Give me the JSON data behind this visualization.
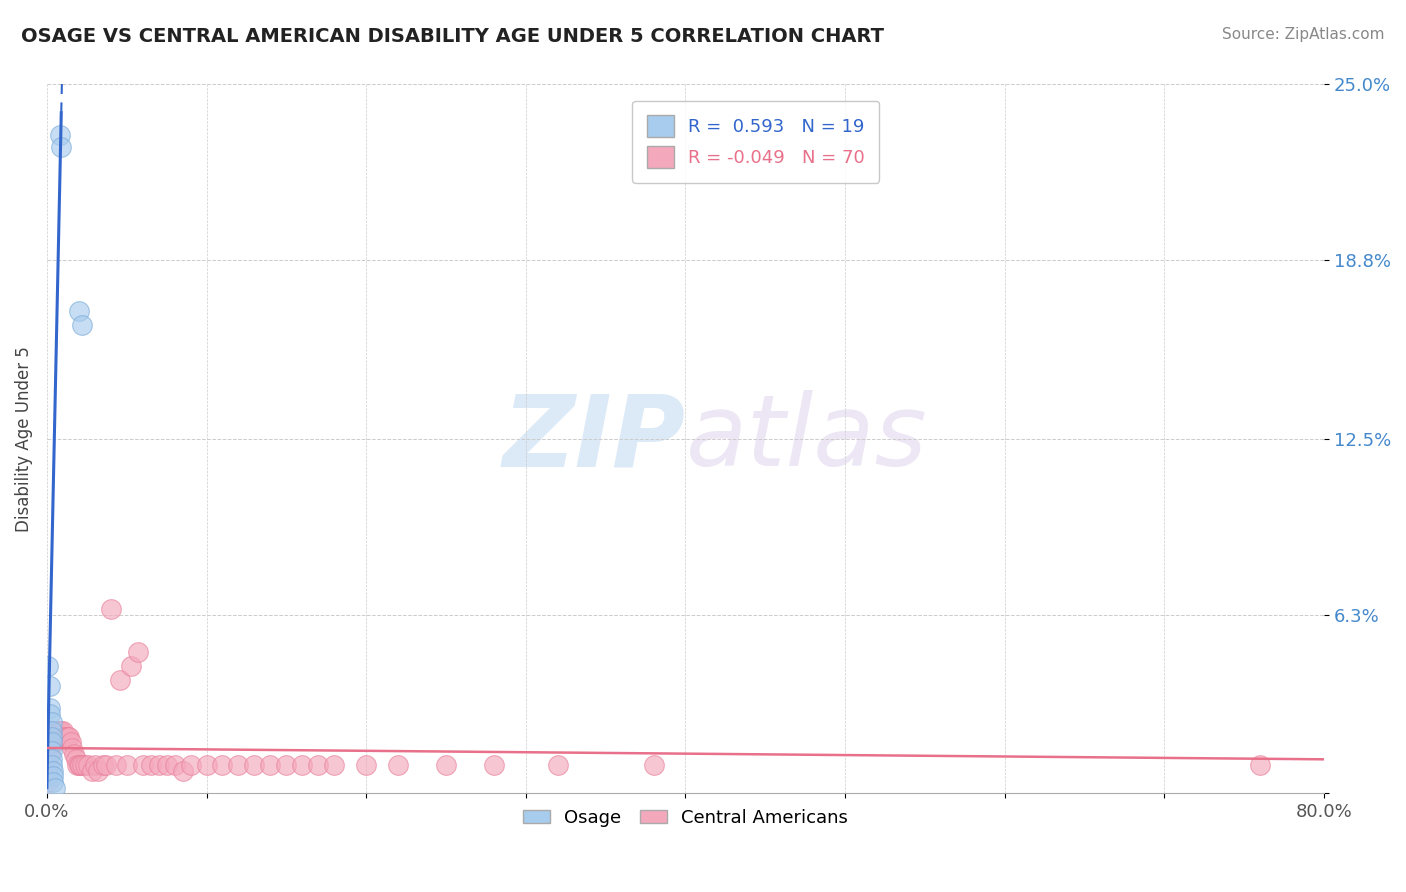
{
  "title": "OSAGE VS CENTRAL AMERICAN DISABILITY AGE UNDER 5 CORRELATION CHART",
  "source": "Source: ZipAtlas.com",
  "ylabel": "Disability Age Under 5",
  "watermark_zip": "ZIP",
  "watermark_atlas": "atlas",
  "xlim": [
    0.0,
    0.8
  ],
  "ylim": [
    0.0,
    0.25
  ],
  "xticks": [
    0.0,
    0.1,
    0.2,
    0.3,
    0.4,
    0.5,
    0.6,
    0.7,
    0.8
  ],
  "xticklabels": [
    "0.0%",
    "",
    "",
    "",
    "",
    "",
    "",
    "",
    "80.0%"
  ],
  "ytick_values": [
    0.0,
    0.063,
    0.125,
    0.188,
    0.25
  ],
  "ytick_labels": [
    "",
    "6.3%",
    "12.5%",
    "18.8%",
    "25.0%"
  ],
  "osage_color": "#A8CCEE",
  "osage_edge_color": "#7AAAD8",
  "central_color": "#F4A8BC",
  "central_edge_color": "#E8809A",
  "osage_line_color": "#3366CC",
  "central_line_color": "#E8708A",
  "background_color": "#FFFFFF",
  "grid_color": "#CCCCCC",
  "R_osage": 0.593,
  "N_osage": 19,
  "R_central": -0.049,
  "N_central": 70,
  "legend_label_osage": "Osage",
  "legend_label_central": "Central Americans",
  "osage_x": [
    0.008,
    0.009,
    0.02,
    0.022,
    0.001,
    0.002,
    0.002,
    0.002,
    0.003,
    0.003,
    0.003,
    0.003,
    0.003,
    0.003,
    0.003,
    0.004,
    0.004,
    0.004,
    0.005
  ],
  "osage_y": [
    0.232,
    0.228,
    0.17,
    0.165,
    0.045,
    0.038,
    0.03,
    0.028,
    0.025,
    0.022,
    0.02,
    0.018,
    0.015,
    0.012,
    0.01,
    0.008,
    0.006,
    0.004,
    0.002
  ],
  "central_x": [
    0.001,
    0.001,
    0.001,
    0.001,
    0.001,
    0.001,
    0.001,
    0.001,
    0.001,
    0.002,
    0.002,
    0.002,
    0.003,
    0.003,
    0.004,
    0.005,
    0.005,
    0.006,
    0.007,
    0.008,
    0.009,
    0.01,
    0.011,
    0.012,
    0.013,
    0.014,
    0.015,
    0.016,
    0.017,
    0.018,
    0.019,
    0.02,
    0.021,
    0.022,
    0.024,
    0.026,
    0.028,
    0.03,
    0.032,
    0.035,
    0.037,
    0.04,
    0.043,
    0.046,
    0.05,
    0.053,
    0.057,
    0.06,
    0.065,
    0.07,
    0.075,
    0.08,
    0.085,
    0.09,
    0.1,
    0.11,
    0.12,
    0.13,
    0.14,
    0.15,
    0.16,
    0.17,
    0.18,
    0.2,
    0.22,
    0.25,
    0.28,
    0.32,
    0.38,
    0.76
  ],
  "central_y": [
    0.02,
    0.018,
    0.016,
    0.014,
    0.012,
    0.01,
    0.008,
    0.006,
    0.004,
    0.022,
    0.018,
    0.014,
    0.022,
    0.018,
    0.022,
    0.022,
    0.018,
    0.022,
    0.022,
    0.022,
    0.022,
    0.022,
    0.02,
    0.02,
    0.02,
    0.02,
    0.018,
    0.016,
    0.014,
    0.012,
    0.01,
    0.01,
    0.01,
    0.01,
    0.01,
    0.01,
    0.008,
    0.01,
    0.008,
    0.01,
    0.01,
    0.065,
    0.01,
    0.04,
    0.01,
    0.045,
    0.05,
    0.01,
    0.01,
    0.01,
    0.01,
    0.01,
    0.008,
    0.01,
    0.01,
    0.01,
    0.01,
    0.01,
    0.01,
    0.01,
    0.01,
    0.01,
    0.01,
    0.01,
    0.01,
    0.01,
    0.01,
    0.01,
    0.01,
    0.01
  ],
  "osage_trendline_x": [
    0.0,
    0.009
  ],
  "osage_trendline_y": [
    0.002,
    0.24
  ],
  "central_trendline_x": [
    0.0,
    0.8
  ],
  "central_trendline_y": [
    0.016,
    0.012
  ]
}
